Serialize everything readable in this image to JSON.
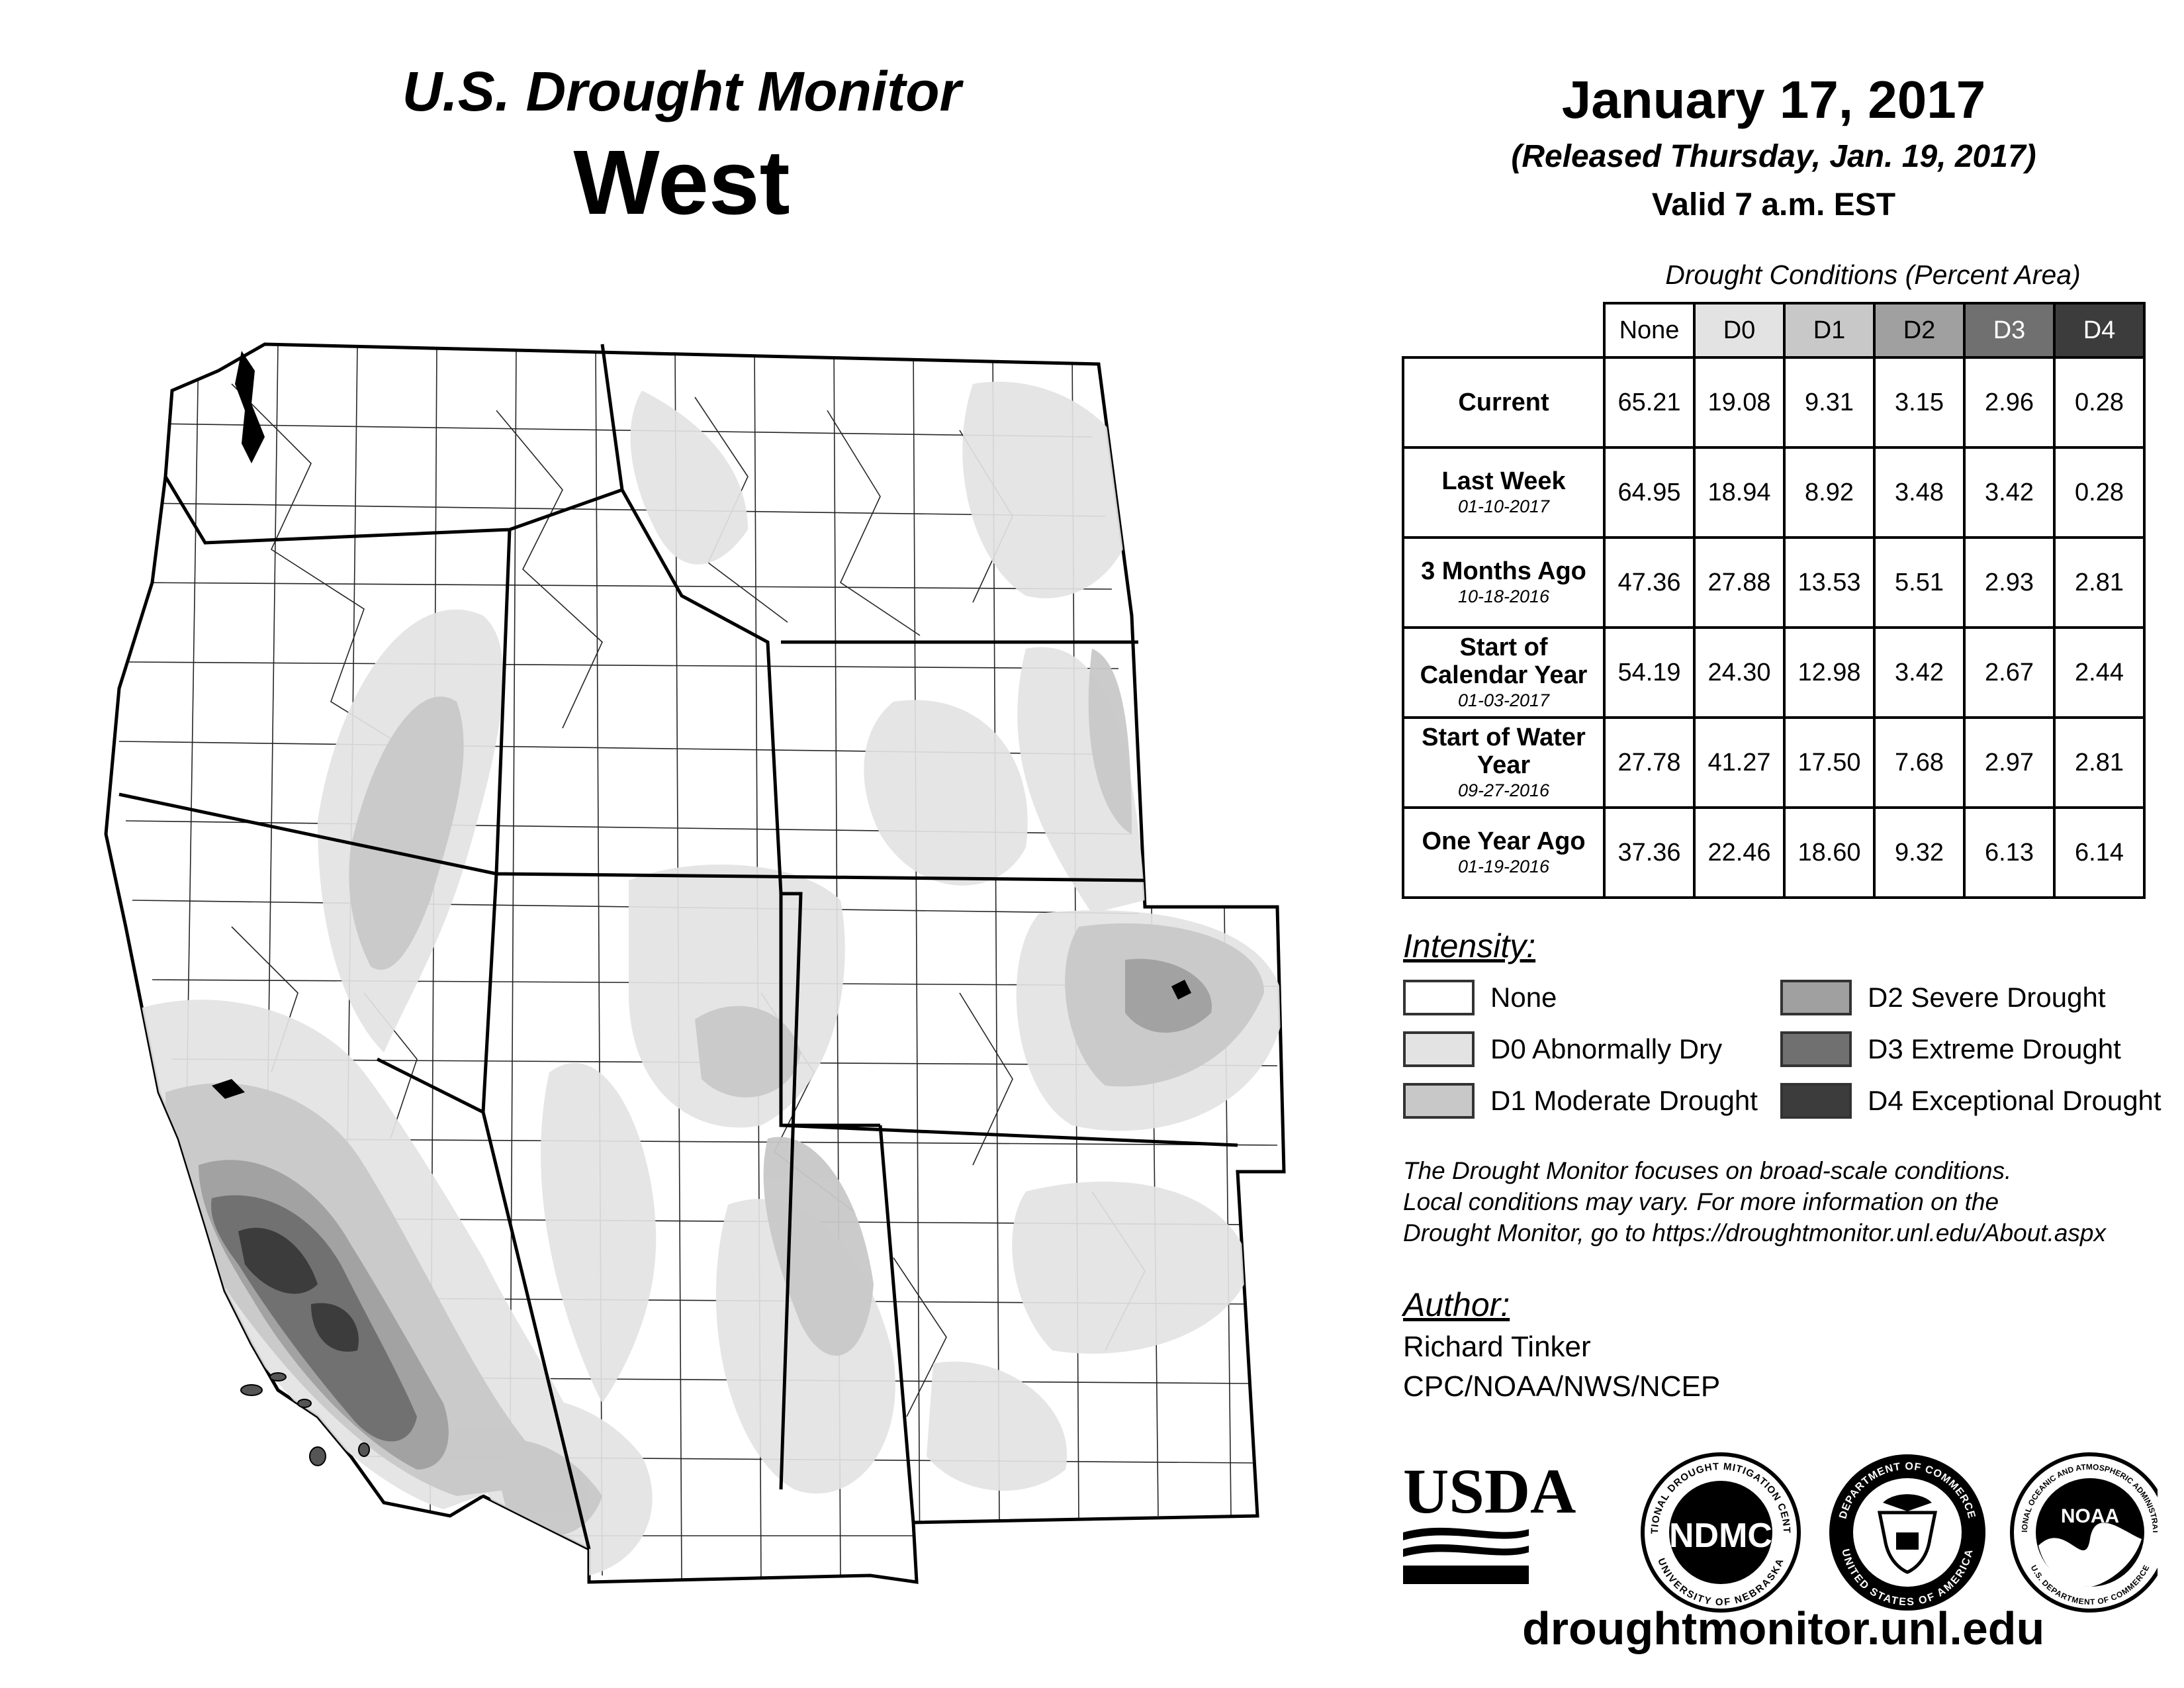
{
  "header": {
    "title_line1": "U.S. Drought Monitor",
    "title_line2": "West",
    "date": "January 17, 2017",
    "released": "(Released Thursday, Jan. 19, 2017)",
    "valid": "Valid 7 a.m. EST"
  },
  "table": {
    "caption": "Drought Conditions (Percent Area)",
    "columns": [
      "None",
      "D0",
      "D1",
      "D2",
      "D3",
      "D4"
    ],
    "rows": [
      {
        "label": "Current",
        "date": "",
        "values": [
          "65.21",
          "19.08",
          "9.31",
          "3.15",
          "2.96",
          "0.28"
        ]
      },
      {
        "label": "Last Week",
        "date": "01-10-2017",
        "values": [
          "64.95",
          "18.94",
          "8.92",
          "3.48",
          "3.42",
          "0.28"
        ]
      },
      {
        "label": "3 Months Ago",
        "date": "10-18-2016",
        "values": [
          "47.36",
          "27.88",
          "13.53",
          "5.51",
          "2.93",
          "2.81"
        ]
      },
      {
        "label": "Start of Calendar Year",
        "date": "01-03-2017",
        "values": [
          "54.19",
          "24.30",
          "12.98",
          "3.42",
          "2.67",
          "2.44"
        ]
      },
      {
        "label": "Start of Water Year",
        "date": "09-27-2016",
        "values": [
          "27.78",
          "41.27",
          "17.50",
          "7.68",
          "2.97",
          "2.81"
        ]
      },
      {
        "label": "One Year Ago",
        "date": "01-19-2016",
        "values": [
          "37.36",
          "22.46",
          "18.60",
          "9.32",
          "6.13",
          "6.14"
        ]
      }
    ]
  },
  "legend": {
    "title": "Intensity:",
    "items": [
      {
        "label": "None",
        "color": "#ffffff"
      },
      {
        "label": "D0 Abnormally Dry",
        "color": "#e3e3e3"
      },
      {
        "label": "D1 Moderate Drought",
        "color": "#c8c8c8"
      },
      {
        "label": "D2 Severe Drought",
        "color": "#a0a0a0"
      },
      {
        "label": "D3 Extreme Drought",
        "color": "#707070"
      },
      {
        "label": "D4 Exceptional Drought",
        "color": "#3c3c3c"
      }
    ]
  },
  "notes": {
    "line1": "The Drought Monitor focuses on broad-scale conditions.",
    "line2": "Local conditions may vary. For more information on the",
    "line3": "Drought Monitor, go to https://droughtmonitor.unl.edu/About.aspx"
  },
  "author": {
    "title": "Author:",
    "name": "Richard Tinker",
    "org": "CPC/NOAA/NWS/NCEP"
  },
  "logos": {
    "usda": "USDA",
    "ndmc": "NDMC",
    "ndmc_ring_top": "NATIONAL DROUGHT MITIGATION CENTER",
    "ndmc_ring_bottom": "UNIVERSITY OF NEBRASKA",
    "doc_ring_top": "DEPARTMENT OF COMMERCE",
    "doc_ring_bottom": "UNITED STATES OF AMERICA",
    "noaa": "NOAA",
    "noaa_ring_top": "NATIONAL OCEANIC AND ATMOSPHERIC ADMINISTRATION",
    "noaa_ring_bottom": "U.S. DEPARTMENT OF COMMERCE"
  },
  "site_url": "droughtmonitor.unl.edu"
}
